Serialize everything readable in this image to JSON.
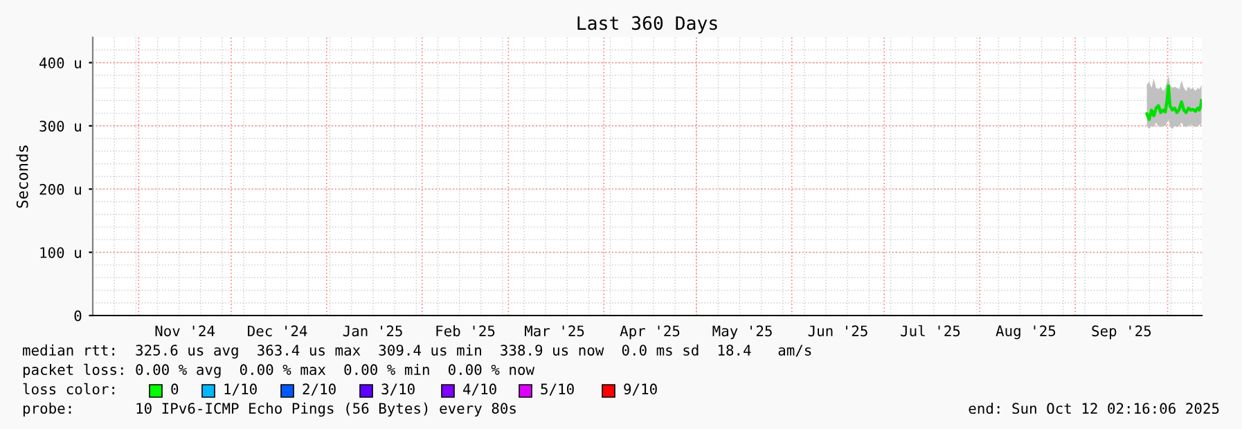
{
  "chart_data": {
    "type": "line",
    "title": "Last 360 Days",
    "ylabel": "Seconds",
    "xlim": [
      "2024-10-17T02:16",
      "2025-10-12T02:16"
    ],
    "xticks": [
      {
        "value": "2024-11-01",
        "label": null
      },
      {
        "value": "2024-11-16",
        "label": "Nov '24"
      },
      {
        "value": "2024-12-01",
        "label": null
      },
      {
        "value": "2024-12-16",
        "label": "Dec '24"
      },
      {
        "value": "2025-01-01",
        "label": null
      },
      {
        "value": "2025-01-16",
        "label": "Jan '25"
      },
      {
        "value": "2025-02-01",
        "label": null
      },
      {
        "value": "2025-02-15",
        "label": "Feb '25"
      },
      {
        "value": "2025-03-01",
        "label": null
      },
      {
        "value": "2025-03-16",
        "label": "Mar '25"
      },
      {
        "value": "2025-04-01",
        "label": null
      },
      {
        "value": "2025-04-16",
        "label": "Apr '25"
      },
      {
        "value": "2025-05-01",
        "label": null
      },
      {
        "value": "2025-05-16",
        "label": "May '25"
      },
      {
        "value": "2025-06-01",
        "label": null
      },
      {
        "value": "2025-06-16",
        "label": "Jun '25"
      },
      {
        "value": "2025-07-01",
        "label": null
      },
      {
        "value": "2025-07-16",
        "label": "Jul '25"
      },
      {
        "value": "2025-08-01",
        "label": null
      },
      {
        "value": "2025-08-16",
        "label": "Aug '25"
      },
      {
        "value": "2025-09-01",
        "label": null
      },
      {
        "value": "2025-09-16",
        "label": "Sep '25"
      },
      {
        "value": "2025-10-01",
        "label": null
      }
    ],
    "ylim": [
      0,
      440
    ],
    "yticks": [
      0,
      {
        "value": 100,
        "label": "100 u"
      },
      {
        "value": 200,
        "label": "200 u"
      },
      {
        "value": 300,
        "label": "300 u"
      },
      {
        "value": 400,
        "label": "400 u"
      }
    ],
    "grid": true,
    "legend": false,
    "marker": "none",
    "line_style": "solid",
    "series": [
      {
        "color": "#00e000",
        "x": [
          "2025-09-24T06:00",
          "2025-09-25T00:00",
          "2025-09-25T18:00",
          "2025-09-26T12:00",
          "2025-09-27T06:00",
          "2025-09-28T00:00",
          "2025-09-28T18:00",
          "2025-09-29T12:00",
          "2025-09-30T06:00",
          "2025-09-30T18:00",
          "2025-10-01T06:00",
          "2025-10-01T18:00",
          "2025-10-02T12:00",
          "2025-10-03T06:00",
          "2025-10-04T00:00",
          "2025-10-04T18:00",
          "2025-10-05T12:00",
          "2025-10-06T06:00",
          "2025-10-07T00:00",
          "2025-10-07T18:00",
          "2025-10-08T12:00",
          "2025-10-09T06:00",
          "2025-10-10T00:00",
          "2025-10-10T18:00",
          "2025-10-11T06:00",
          "2025-10-11T18:00",
          "2025-10-12T00:00"
        ],
        "values": [
          319,
          310,
          325,
          316,
          328,
          332,
          321,
          325,
          322,
          339,
          363,
          332,
          325,
          328,
          321,
          326,
          338,
          325,
          321,
          328,
          325,
          326,
          323,
          328,
          325,
          332,
          340
        ],
        "lower": [
          300,
          295,
          300,
          298,
          305,
          300,
          298,
          300,
          300,
          305,
          310,
          300,
          295,
          300,
          298,
          300,
          305,
          300,
          298,
          300,
          302,
          300,
          298,
          300,
          302,
          300,
          305
        ],
        "upper": [
          365,
          370,
          360,
          375,
          360,
          358,
          362,
          355,
          360,
          370,
          380,
          365,
          360,
          362,
          360,
          358,
          372,
          360,
          355,
          362,
          358,
          360,
          355,
          360,
          358,
          362,
          365
        ]
      }
    ],
    "annotations": [
      "median rtt:  325.6 us avg  363.4 us max  309.4 us min  338.9 us now  0.0 ms sd  18.4   am/s",
      "packet loss: 0.00 % avg  0.00 % max  0.00 % min  0.00 % now",
      "loss color:",
      "0",
      "1/10",
      "2/10",
      "3/10",
      "4/10",
      "5/10",
      "9/10",
      "probe:       10 IPv6-ICMP Echo Pings (56 Bytes) every 80s",
      "end: Sun Oct 12 02:16:06 2025"
    ]
  }
}
